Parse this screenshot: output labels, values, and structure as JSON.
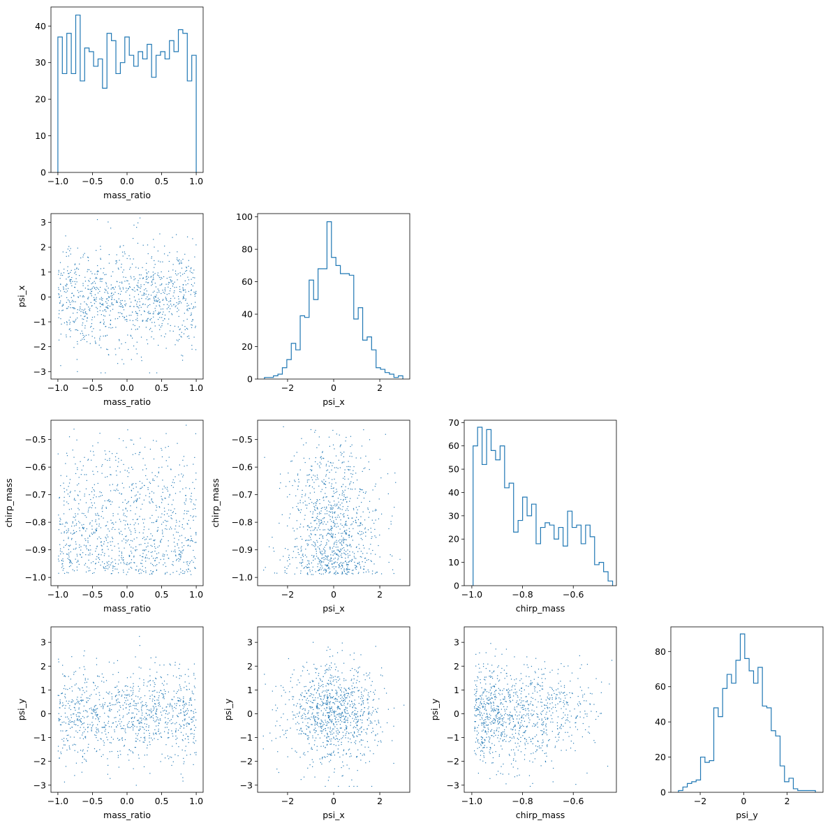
{
  "figure": {
    "type": "corner_plot",
    "variables": [
      "mass_ratio",
      "psi_x",
      "chirp_mass",
      "psi_y"
    ],
    "color": "#1f77b4"
  },
  "chart_data": [
    {
      "type": "histogram",
      "variable": "mass_ratio",
      "xlabel": "mass_ratio",
      "xlim": [
        -1.1,
        1.1
      ],
      "ylim": [
        0,
        45.2
      ],
      "xticks": [
        "-1.0",
        "-0.5",
        "0.0",
        "0.5",
        "1.0"
      ],
      "xtick_values": [
        -1.0,
        -0.5,
        0.0,
        0.5,
        1.0
      ],
      "yticks": [
        "0",
        "10",
        "20",
        "30",
        "40"
      ],
      "ytick_values": [
        0,
        10,
        20,
        30,
        40
      ],
      "bin_range": [
        -1.0,
        1.0
      ],
      "counts": [
        37,
        27,
        38,
        27,
        43,
        25,
        34,
        33,
        29,
        31,
        23,
        38,
        36,
        27,
        30,
        37,
        32,
        29,
        33,
        31,
        35,
        26,
        32,
        33,
        31,
        36,
        33,
        39,
        38,
        25,
        32
      ]
    },
    {
      "type": "scatter",
      "variables": [
        "mass_ratio",
        "psi_x"
      ],
      "xlabel": "mass_ratio",
      "ylabel": "psi_x",
      "xlim": [
        -1.1,
        1.1
      ],
      "ylim": [
        -3.3,
        3.35
      ],
      "xticks": [
        "-1.0",
        "-0.5",
        "0.0",
        "0.5",
        "1.0"
      ],
      "xtick_values": [
        -1.0,
        -0.5,
        0.0,
        0.5,
        1.0
      ],
      "yticks": [
        "-3",
        "-2",
        "-1",
        "0",
        "1",
        "2",
        "3"
      ],
      "ytick_values": [
        -3,
        -2,
        -1,
        0,
        1,
        2,
        3
      ],
      "x_dist": {
        "kind": "uniform",
        "min": -1.0,
        "max": 1.0
      },
      "y_dist": {
        "kind": "normal",
        "mean": 0,
        "sd": 1
      },
      "n_points": 1000
    },
    {
      "type": "histogram",
      "variable": "psi_x",
      "xlabel": "psi_x",
      "xlim": [
        -3.3,
        3.3
      ],
      "ylim": [
        0,
        102
      ],
      "xticks": [
        "-2",
        "0",
        "2"
      ],
      "xtick_values": [
        -2,
        0,
        2
      ],
      "yticks": [
        "0",
        "20",
        "40",
        "60",
        "80",
        "100"
      ],
      "ytick_values": [
        0,
        20,
        40,
        60,
        80,
        100
      ],
      "bin_range": [
        -3.0,
        3.0
      ],
      "counts": [
        1,
        1,
        2,
        3,
        7,
        12,
        22,
        18,
        39,
        38,
        61,
        49,
        68,
        68,
        97,
        75,
        70,
        65,
        65,
        64,
        37,
        44,
        24,
        26,
        18,
        7,
        6,
        4,
        3,
        1,
        2
      ]
    },
    {
      "type": "scatter",
      "variables": [
        "mass_ratio",
        "chirp_mass"
      ],
      "xlabel": "mass_ratio",
      "ylabel": "chirp_mass",
      "xlim": [
        -1.1,
        1.1
      ],
      "ylim": [
        -1.03,
        -0.43
      ],
      "xticks": [
        "-1.0",
        "-0.5",
        "0.0",
        "0.5",
        "1.0"
      ],
      "xtick_values": [
        -1.0,
        -0.5,
        0.0,
        0.5,
        1.0
      ],
      "yticks": [
        "-1.0",
        "-0.9",
        "-0.8",
        "-0.7",
        "-0.6",
        "-0.5"
      ],
      "ytick_values": [
        -1.0,
        -0.9,
        -0.8,
        -0.7,
        -0.6,
        -0.5
      ],
      "x_dist": {
        "kind": "uniform",
        "min": -1.0,
        "max": 1.0
      },
      "y_dist": {
        "kind": "decreasing",
        "min": -0.99,
        "max": -0.44
      },
      "n_points": 1000
    },
    {
      "type": "scatter",
      "variables": [
        "psi_x",
        "chirp_mass"
      ],
      "xlabel": "psi_x",
      "ylabel": "chirp_mass",
      "xlim": [
        -3.3,
        3.3
      ],
      "ylim": [
        -1.03,
        -0.43
      ],
      "xticks": [
        "-2",
        "0",
        "2"
      ],
      "xtick_values": [
        -2,
        0,
        2
      ],
      "yticks": [
        "-1.0",
        "-0.9",
        "-0.8",
        "-0.7",
        "-0.6",
        "-0.5"
      ],
      "ytick_values": [
        -1.0,
        -0.9,
        -0.8,
        -0.7,
        -0.6,
        -0.5
      ],
      "x_dist": {
        "kind": "normal",
        "mean": 0,
        "sd": 1
      },
      "y_dist": {
        "kind": "decreasing",
        "min": -0.99,
        "max": -0.44
      },
      "n_points": 1000
    },
    {
      "type": "histogram",
      "variable": "chirp_mass",
      "xlabel": "chirp_mass",
      "xlim": [
        -1.03,
        -0.43
      ],
      "ylim": [
        0,
        71
      ],
      "xticks": [
        "-1.0",
        "-0.8",
        "-0.6"
      ],
      "xtick_values": [
        -1.0,
        -0.8,
        -0.6
      ],
      "yticks": [
        "0",
        "10",
        "20",
        "30",
        "40",
        "50",
        "60",
        "70"
      ],
      "ytick_values": [
        0,
        10,
        20,
        30,
        40,
        50,
        60,
        70
      ],
      "bin_range": [
        -0.995,
        -0.445
      ],
      "counts": [
        60,
        68,
        52,
        67,
        58,
        54,
        60,
        42,
        44,
        23,
        28,
        38,
        30,
        35,
        18,
        25,
        27,
        26,
        20,
        25,
        17,
        32,
        25,
        26,
        18,
        26,
        21,
        9,
        10,
        6,
        2
      ]
    },
    {
      "type": "scatter",
      "variables": [
        "mass_ratio",
        "psi_y"
      ],
      "xlabel": "mass_ratio",
      "ylabel": "psi_y",
      "xlim": [
        -1.1,
        1.1
      ],
      "ylim": [
        -3.3,
        3.65
      ],
      "xticks": [
        "-1.0",
        "-0.5",
        "0.0",
        "0.5",
        "1.0"
      ],
      "xtick_values": [
        -1.0,
        -0.5,
        0.0,
        0.5,
        1.0
      ],
      "yticks": [
        "-3",
        "-2",
        "-1",
        "0",
        "1",
        "2",
        "3"
      ],
      "ytick_values": [
        -3,
        -2,
        -1,
        0,
        1,
        2,
        3
      ],
      "x_dist": {
        "kind": "uniform",
        "min": -1.0,
        "max": 1.0
      },
      "y_dist": {
        "kind": "normal",
        "mean": 0,
        "sd": 1
      },
      "n_points": 1000
    },
    {
      "type": "scatter",
      "variables": [
        "psi_x",
        "psi_y"
      ],
      "xlabel": "psi_x",
      "ylabel": "psi_y",
      "xlim": [
        -3.3,
        3.3
      ],
      "ylim": [
        -3.3,
        3.65
      ],
      "xticks": [
        "-2",
        "0",
        "2"
      ],
      "xtick_values": [
        -2,
        0,
        2
      ],
      "yticks": [
        "-3",
        "-2",
        "-1",
        "0",
        "1",
        "2",
        "3"
      ],
      "ytick_values": [
        -3,
        -2,
        -1,
        0,
        1,
        2,
        3
      ],
      "x_dist": {
        "kind": "normal",
        "mean": 0,
        "sd": 1
      },
      "y_dist": {
        "kind": "normal",
        "mean": 0,
        "sd": 1
      },
      "n_points": 1000
    },
    {
      "type": "scatter",
      "variables": [
        "chirp_mass",
        "psi_y"
      ],
      "xlabel": "chirp_mass",
      "ylabel": "psi_y",
      "xlim": [
        -1.03,
        -0.43
      ],
      "ylim": [
        -3.3,
        3.65
      ],
      "xticks": [
        "-1.0",
        "-0.8",
        "-0.6"
      ],
      "xtick_values": [
        -1.0,
        -0.8,
        -0.6
      ],
      "yticks": [
        "-3",
        "-2",
        "-1",
        "0",
        "1",
        "2",
        "3"
      ],
      "ytick_values": [
        -3,
        -2,
        -1,
        0,
        1,
        2,
        3
      ],
      "x_dist": {
        "kind": "decreasing",
        "min": -0.99,
        "max": -0.44
      },
      "y_dist": {
        "kind": "normal",
        "mean": 0,
        "sd": 1
      },
      "n_points": 1000
    },
    {
      "type": "histogram",
      "variable": "psi_y",
      "xlabel": "psi_y",
      "xlim": [
        -3.35,
        3.65
      ],
      "ylim": [
        0,
        94
      ],
      "xticks": [
        "-2",
        "0",
        "2"
      ],
      "xtick_values": [
        -2,
        0,
        2
      ],
      "yticks": [
        "0",
        "20",
        "40",
        "60",
        "80"
      ],
      "ytick_values": [
        0,
        20,
        40,
        60,
        80
      ],
      "bin_range": [
        -3.0,
        3.3
      ],
      "counts": [
        1,
        3,
        5,
        6,
        7,
        20,
        17,
        18,
        48,
        43,
        59,
        67,
        62,
        75,
        90,
        76,
        69,
        62,
        71,
        49,
        48,
        35,
        32,
        15,
        6,
        8,
        2,
        1,
        1,
        1,
        1
      ]
    }
  ]
}
